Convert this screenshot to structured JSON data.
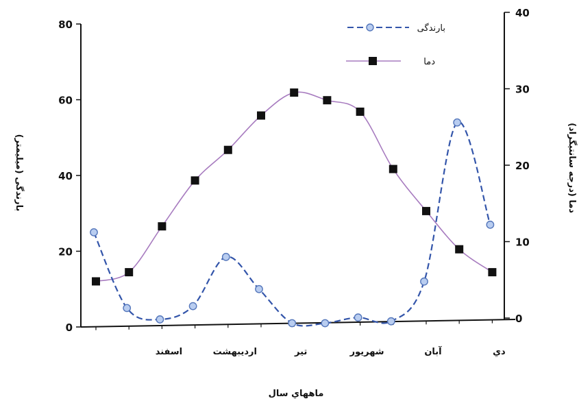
{
  "chart_data": {
    "type": "line",
    "categories": [
      "",
      "",
      "اسفند",
      "",
      "ارديبهشت",
      "",
      "تير",
      "",
      "شهريور",
      "",
      "آبان",
      "",
      "دي"
    ],
    "x_tick_labels": [
      "اسفند",
      "ارديبهشت",
      "تير",
      "شهريور",
      "آبان",
      "دي"
    ],
    "xlabel": "ماههاي سال",
    "ylabel_left": "بارندگی (میلیمتر)",
    "ylabel_right": "دما (درجه سانتیگراد)",
    "ylim_left": [
      0,
      80
    ],
    "ylim_right": [
      0,
      40
    ],
    "yticks_left": [
      0,
      20,
      40,
      60,
      80
    ],
    "yticks_right": [
      0,
      10,
      20,
      30,
      40
    ],
    "grid": false,
    "legend_position": "top-right",
    "series": [
      {
        "name": "بارندگی",
        "axis": "left",
        "style": "dashed",
        "marker": "circle",
        "color": "#3355aa",
        "values": [
          25,
          5,
          2,
          5.5,
          18.5,
          10,
          1,
          1,
          2.5,
          1.5,
          12,
          54,
          27
        ]
      },
      {
        "name": "دما",
        "axis": "right",
        "style": "solid",
        "marker": "square",
        "color": "#a77bbf",
        "values": [
          4.8,
          6,
          12,
          18,
          22,
          26.5,
          29.5,
          28.5,
          27,
          19.5,
          14,
          9,
          6
        ]
      }
    ]
  }
}
